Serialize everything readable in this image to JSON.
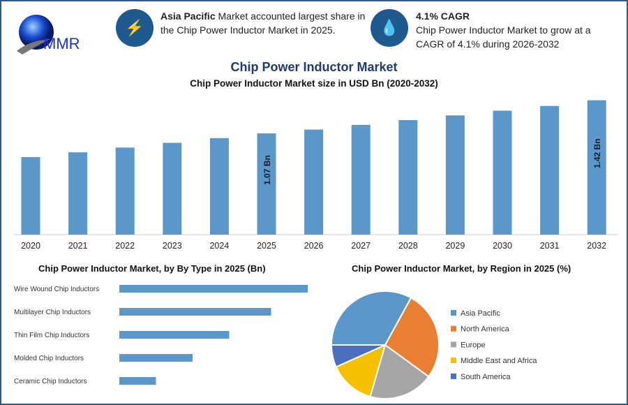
{
  "header": {
    "logo_text": "MMR",
    "info1": {
      "icon": "lightning-icon",
      "bold": "Asia Pacific",
      "text": " Market accounted largest share in the Chip Power Inductor Market in 2025."
    },
    "info2": {
      "icon": "growth-drop-icon",
      "title": "4.1% CAGR",
      "text": "Chip Power Inductor Market to grow at a CAGR of 4.1% during 2026-2032"
    }
  },
  "main_title": "Chip Power Inductor Market",
  "chart_data": [
    {
      "type": "bar",
      "title": "Chip Power Inductor Market size in USD Bn (2020-2032)",
      "categories": [
        "2020",
        "2021",
        "2022",
        "2023",
        "2024",
        "2025",
        "2026",
        "2027",
        "2028",
        "2029",
        "2030",
        "2031",
        "2032"
      ],
      "values": [
        0.82,
        0.87,
        0.92,
        0.97,
        1.02,
        1.07,
        1.11,
        1.16,
        1.21,
        1.26,
        1.31,
        1.36,
        1.42
      ],
      "data_labels": {
        "2025": "1.07 Bn",
        "2032": "1.42 Bn"
      },
      "color": "#5b97c9",
      "ylim": [
        0,
        1.45
      ]
    },
    {
      "type": "bar",
      "orientation": "horizontal",
      "title": "Chip Power Inductor Market, by By Type in 2025 (Bn)",
      "categories": [
        "Wire Wound Chip Inductors",
        "Multilayer Chip Inductors",
        "Thin Film Chip Inductors",
        "Molded Chip Inductors",
        "Ceramic Chip Inductors"
      ],
      "values": [
        0.36,
        0.29,
        0.21,
        0.14,
        0.07
      ],
      "color": "#5b97c9"
    },
    {
      "type": "pie",
      "title": "Chip Power Inductor Market, by Region in 2025 (%)",
      "categories": [
        "Asia Pacific",
        "North America",
        "Europe",
        "Middle East and Africa",
        "South America"
      ],
      "values": [
        33,
        27,
        19.5,
        13.8,
        6.7
      ],
      "colors": [
        "#5b97c9",
        "#e97f32",
        "#a5a5a5",
        "#f5c000",
        "#4a6fbf"
      ],
      "legend": "right"
    }
  ]
}
